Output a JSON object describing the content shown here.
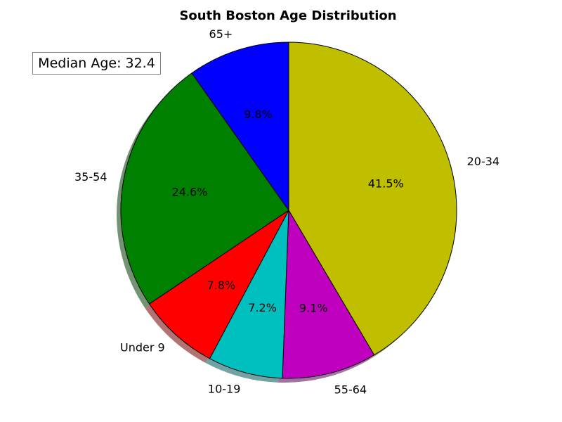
{
  "chart_data": {
    "type": "pie",
    "title": "South Boston Age Distribution",
    "categories": [
      "20-34",
      "55-64",
      "10-19",
      "Under 9",
      "35-54",
      "65+"
    ],
    "values": [
      41.5,
      9.1,
      7.2,
      7.8,
      24.6,
      9.8
    ],
    "value_labels": [
      "41.5%",
      "9.1%",
      "7.2%",
      "7.8%",
      "24.6%",
      "9.8%"
    ],
    "colors": [
      "#bfbf00",
      "#bf00bf",
      "#00bfbf",
      "#ff0000",
      "#008000",
      "#0000ff"
    ],
    "start_angle_deg": 90,
    "direction": "clockwise",
    "shadow": true,
    "annotation": "Median Age: 32.4"
  }
}
